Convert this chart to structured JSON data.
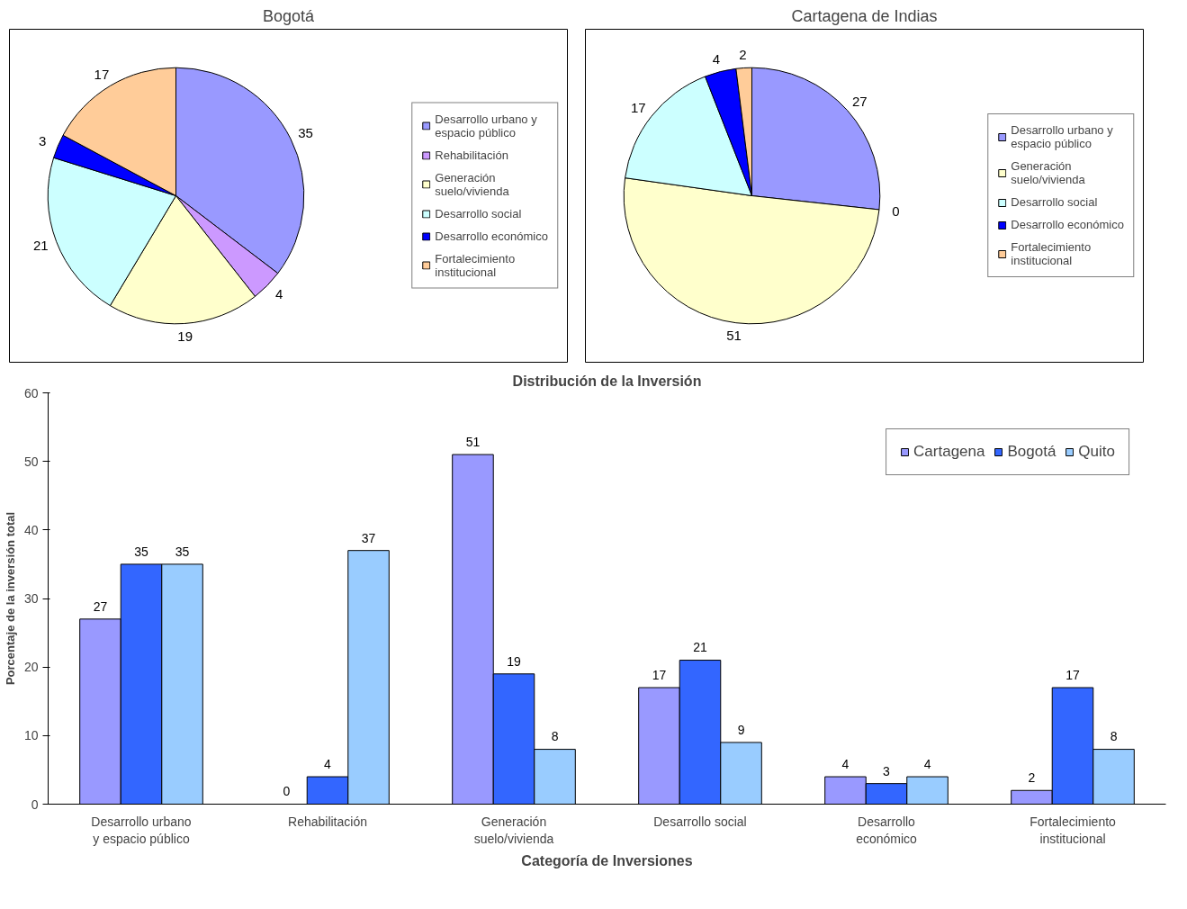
{
  "chart_data": [
    {
      "type": "pie",
      "title": "Bogotá",
      "categories": [
        "Desarrollo urbano y espacio público",
        "Rehabilitación",
        "Generación suelo/vivienda",
        "Desarrollo social",
        "Desarrollo económico",
        "Fortalecimiento institucional"
      ],
      "values": [
        35,
        4,
        19,
        21,
        3,
        17
      ],
      "colors": [
        "#9999ff",
        "#cc99ff",
        "#ffffcc",
        "#ccffff",
        "#0000ff",
        "#ffcc99"
      ],
      "data_labels": true,
      "legend": "right"
    },
    {
      "type": "pie",
      "title": "Cartagena de Indias",
      "categories": [
        "Desarrollo urbano y espacio público",
        null,
        "Generación suelo/vivienda",
        "Desarrollo social",
        "Desarrollo económico",
        "Fortalecimiento institucional"
      ],
      "values": [
        27,
        0,
        51,
        17,
        4,
        2
      ],
      "colors": [
        "#9999ff",
        "#cc99ff",
        "#ffffcc",
        "#ccffff",
        "#0000ff",
        "#ffcc99"
      ],
      "value_labels": [
        "27",
        "0",
        "51",
        "17",
        "4",
        "2"
      ],
      "legend": "right"
    },
    {
      "type": "bar",
      "title": "Distribución de la Inversión",
      "xlabel": "Categoría de Inversiones",
      "ylabel": "Porcentaje de la inversión total",
      "categories": [
        "Desarrollo urbano y espacio público",
        "Rehabilitación",
        "Generación suelo/vivienda",
        "Desarrollo social",
        "Desarrollo económico",
        "Fortalecimiento institucional"
      ],
      "series": [
        {
          "name": "Cartagena",
          "color": "#9999ff",
          "values": [
            27,
            0,
            51,
            17,
            4,
            2
          ]
        },
        {
          "name": "Bogotá",
          "color": "#3366ff",
          "values": [
            35,
            4,
            19,
            21,
            3,
            17
          ]
        },
        {
          "name": "Quito",
          "color": "#99ccff",
          "values": [
            35,
            37,
            8,
            9,
            4,
            8
          ]
        }
      ],
      "ylim": [
        0,
        60
      ],
      "yticks": [
        0,
        10,
        20,
        30,
        40,
        50,
        60
      ],
      "data_labels": true,
      "legend": "top right",
      "grid": false
    }
  ]
}
